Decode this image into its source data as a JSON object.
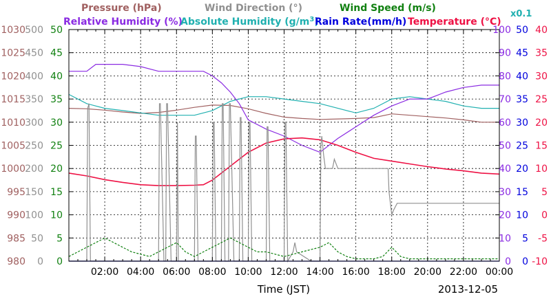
{
  "chart_data": {
    "type": "line",
    "date_label": "2013-12-05",
    "xlabel": "Time (JST)",
    "x_ticks": [
      "02:00",
      "04:00",
      "06:00",
      "08:00",
      "10:00",
      "12:00",
      "14:00",
      "16:00",
      "18:00",
      "20:00",
      "22:00",
      "00:00"
    ],
    "x_range_hours": [
      0,
      24
    ],
    "grid": true,
    "legend": [
      {
        "name": "Pressure (hPa)",
        "color": "#a06060"
      },
      {
        "name": "Wind Direction (°)",
        "color": "#909090"
      },
      {
        "name": "Wind Speed (m/s)",
        "color": "#108010"
      },
      {
        "name": "Relative Humidity (%)",
        "color": "#8a2be2"
      },
      {
        "name": "Absolute Humidity (g/m",
        "sup": "3",
        "name_end": ")",
        "color": "#20b0b0"
      },
      {
        "name": "Rain Rate(mm/h)",
        "color": "#0000dd"
      },
      {
        "name": "Temperature (°C)",
        "color": "#ee1144"
      },
      {
        "name": "x0.1",
        "color": "#20b0b0"
      }
    ],
    "axes": {
      "pressure": {
        "color": "#a06060",
        "range": [
          980,
          1030
        ],
        "ticks": [
          "980",
          "985",
          "990",
          "995",
          "1000",
          "1005",
          "1010",
          "1015",
          "1020",
          "1025",
          "1030"
        ]
      },
      "wind_direction": {
        "color": "#909090",
        "range": [
          0,
          500
        ],
        "ticks": [
          "0",
          "50",
          "100",
          "150",
          "200",
          "250",
          "300",
          "350",
          "400",
          "450",
          "500"
        ]
      },
      "wind_speed": {
        "color": "#108010",
        "range": [
          0,
          50
        ],
        "ticks": [
          "0",
          "5",
          "10",
          "15",
          "20",
          "25",
          "30",
          "35",
          "40",
          "45",
          "50"
        ]
      },
      "humidity": {
        "color": "#8a2be2",
        "range": [
          0,
          100
        ],
        "ticks": [
          "0",
          "10",
          "20",
          "30",
          "40",
          "50",
          "60",
          "70",
          "80",
          "90",
          "100"
        ]
      },
      "rain": {
        "color": "#0000dd",
        "range": [
          0,
          50
        ],
        "ticks": [
          "0",
          "5",
          "10",
          "15",
          "20",
          "25",
          "30",
          "35",
          "40",
          "45",
          "50"
        ]
      },
      "temperature": {
        "color": "#ee1144",
        "range": [
          -10,
          40
        ],
        "ticks": [
          "-10",
          "-5",
          "0",
          "5",
          "10",
          "15",
          "20",
          "25",
          "30",
          "35",
          "40"
        ]
      }
    },
    "series": [
      {
        "name": "Pressure (hPa)",
        "axis": "pressure",
        "color": "#a06060",
        "x": [
          0,
          1,
          2,
          3,
          4,
          5,
          6,
          7,
          8,
          9,
          10,
          11,
          12,
          13,
          14,
          15,
          16,
          17,
          18,
          19,
          20,
          21,
          22,
          23,
          24
        ],
        "y": [
          1013.0,
          1012.9,
          1012.6,
          1012.2,
          1011.9,
          1012.1,
          1012.6,
          1013.2,
          1013.7,
          1013.6,
          1012.9,
          1011.9,
          1011.1,
          1010.8,
          1010.6,
          1010.7,
          1010.8,
          1011.0,
          1011.8,
          1011.5,
          1011.2,
          1010.9,
          1010.5,
          1010.0,
          1010.0
        ]
      },
      {
        "name": "Absolute Humidity (x0.1)",
        "axis": "humidity",
        "color": "#20b0b0",
        "x": [
          0,
          1,
          2,
          3,
          4,
          5,
          6,
          7,
          8,
          9,
          10,
          11,
          12,
          13,
          14,
          15,
          16,
          17,
          18,
          19,
          20,
          21,
          22,
          23,
          24
        ],
        "y": [
          72,
          68,
          66,
          65,
          64,
          63,
          63,
          63,
          65,
          69,
          71,
          71,
          70,
          69,
          68,
          66,
          64,
          66,
          70,
          71,
          70,
          69,
          67,
          66,
          66
        ]
      },
      {
        "name": "Relative Humidity (%)",
        "axis": "humidity",
        "color": "#8a2be2",
        "x": [
          0,
          1,
          1.5,
          2,
          3,
          4,
          5,
          6,
          7,
          7.5,
          8,
          8.5,
          9,
          9.5,
          10,
          11,
          12,
          13,
          14,
          15,
          16,
          17,
          18,
          19,
          20,
          21,
          22,
          23,
          24
        ],
        "y": [
          82,
          82,
          85,
          85,
          85,
          84,
          82,
          82,
          82,
          82,
          80,
          77,
          73,
          68,
          61,
          57,
          54,
          50,
          47,
          53,
          58,
          63,
          67,
          70,
          70,
          73,
          75,
          76,
          76
        ]
      },
      {
        "name": "Temperature (°C)",
        "axis": "temperature",
        "color": "#ee1144",
        "x": [
          0,
          1,
          2,
          3,
          4,
          5,
          6,
          7,
          7.5,
          8,
          9,
          10,
          11,
          12,
          13,
          14,
          15,
          16,
          17,
          18,
          19,
          20,
          21,
          22,
          23,
          24
        ],
        "y": [
          9.0,
          8.4,
          7.6,
          7.0,
          6.5,
          6.3,
          6.3,
          6.4,
          6.5,
          7.5,
          10.5,
          13.5,
          15.5,
          16.4,
          16.6,
          16.2,
          15.0,
          13.5,
          12.2,
          11.6,
          11.0,
          10.4,
          9.9,
          9.5,
          9.0,
          8.8
        ]
      },
      {
        "name": "Wind Direction (°)",
        "axis": "wind_direction",
        "color": "#909090",
        "x": [
          0,
          1,
          1.05,
          1.12,
          1.2,
          3,
          5.0,
          5.05,
          5.1,
          5.3,
          5.4,
          5.45,
          5.5,
          5.7,
          6.0,
          6.05,
          6.1,
          6.9,
          7.0,
          7.05,
          7.1,
          7.2,
          8.0,
          8.05,
          8.1,
          8.2,
          8.5,
          8.55,
          8.6,
          8.7,
          8.9,
          8.95,
          9.0,
          9.2,
          9.5,
          9.55,
          9.6,
          9.7,
          10.0,
          10.05,
          10.1,
          10.2,
          11.0,
          11.05,
          11.1,
          11.2,
          12.0,
          12.05,
          12.1,
          12.2,
          12.5,
          12.6,
          12.7,
          13.5,
          14.0,
          14.05,
          14.1,
          14.2,
          14.3,
          14.7,
          14.8,
          15.0,
          16,
          17.5,
          17.8,
          17.85,
          18.0,
          18.1,
          18.3,
          20,
          22,
          24
        ],
        "y": [
          0,
          0,
          330,
          340,
          0,
          0,
          0,
          340,
          340,
          0,
          0,
          340,
          340,
          0,
          0,
          300,
          0,
          0,
          0,
          270,
          270,
          0,
          0,
          300,
          300,
          0,
          0,
          340,
          340,
          0,
          0,
          340,
          340,
          0,
          0,
          310,
          310,
          0,
          0,
          300,
          300,
          0,
          0,
          290,
          290,
          0,
          0,
          300,
          300,
          0,
          20,
          40,
          20,
          0,
          0,
          250,
          270,
          230,
          200,
          200,
          220,
          200,
          200,
          200,
          200,
          150,
          100,
          110,
          125,
          125,
          125,
          125
        ]
      },
      {
        "name": "Wind Speed (m/s)",
        "axis": "wind_speed",
        "color": "#108010",
        "x": [
          0,
          0.5,
          1,
          1.5,
          2,
          2.5,
          3,
          3.5,
          4,
          4.5,
          5,
          5.5,
          6,
          6.5,
          7,
          7.5,
          8,
          8.5,
          9,
          9.5,
          10,
          10.5,
          11,
          11.5,
          12,
          12.5,
          13,
          13.5,
          14,
          14.5,
          15,
          15.5,
          16,
          16.5,
          17,
          17.5,
          18,
          18.5,
          19,
          19.5,
          20,
          20.5,
          21,
          21.5,
          22,
          22.5,
          23,
          23.5,
          24
        ],
        "y": [
          1,
          2,
          3,
          4,
          5,
          4,
          3,
          2,
          1.5,
          1,
          2,
          3,
          4,
          2,
          1,
          2,
          3,
          4,
          5,
          4,
          3,
          2,
          2,
          1.5,
          1,
          1.5,
          2,
          2.5,
          3,
          4,
          2,
          1,
          0.5,
          0.5,
          0.5,
          1,
          3,
          1,
          0.5,
          0.5,
          0.5,
          0.5,
          0.5,
          0.5,
          0.5,
          0.5,
          0.5,
          0.5,
          0.5
        ]
      },
      {
        "name": "Rain Rate(mm/h)",
        "axis": "rain",
        "color": "#0000dd",
        "x": [
          0,
          24
        ],
        "y": [
          0,
          0
        ]
      }
    ]
  }
}
